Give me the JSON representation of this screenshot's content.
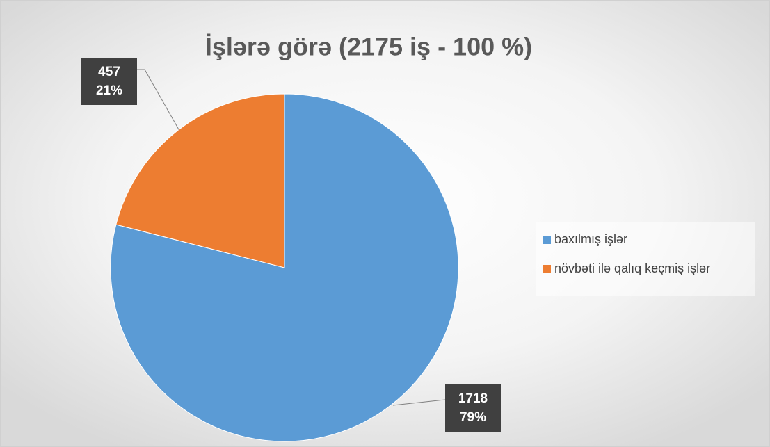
{
  "chart_data": {
    "type": "pie",
    "title": "İşlərə görə (2175 iş - 100 %)",
    "categories": [
      "baxılmış işlər",
      "növbəti ilə qalıq keçmiş işlər"
    ],
    "values": [
      1718,
      457
    ],
    "percent_labels": [
      "79%",
      "21%"
    ],
    "colors": [
      "#5b9bd5",
      "#ed7d31"
    ],
    "legend": "right"
  }
}
